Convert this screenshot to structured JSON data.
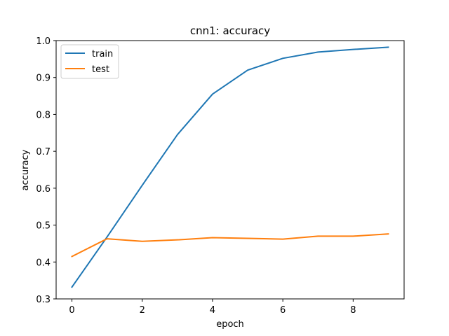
{
  "chart_data": {
    "type": "line",
    "title": "cnn1: accuracy",
    "xlabel": "epoch",
    "ylabel": "accuracy",
    "x": [
      0,
      1,
      2,
      3,
      4,
      5,
      6,
      7,
      8,
      9
    ],
    "xlim": [
      -0.45,
      9.45
    ],
    "ylim": [
      0.3,
      1.0
    ],
    "xticks": [
      0,
      2,
      4,
      6,
      8
    ],
    "yticks": [
      0.3,
      0.4,
      0.5,
      0.6,
      0.7,
      0.8,
      0.9,
      1.0
    ],
    "xtick_labels": [
      "0",
      "2",
      "4",
      "6",
      "8"
    ],
    "ytick_labels": [
      "0.3",
      "0.4",
      "0.5",
      "0.6",
      "0.7",
      "0.8",
      "0.9",
      "1.0"
    ],
    "grid": false,
    "legend_position": "top-left",
    "series": [
      {
        "name": "train",
        "color": "#1f77b4",
        "values": [
          0.332,
          0.468,
          0.608,
          0.745,
          0.855,
          0.92,
          0.952,
          0.969,
          0.976,
          0.982
        ]
      },
      {
        "name": "test",
        "color": "#ff7f0e",
        "values": [
          0.415,
          0.463,
          0.456,
          0.46,
          0.466,
          0.464,
          0.462,
          0.47,
          0.47,
          0.476
        ]
      }
    ]
  }
}
